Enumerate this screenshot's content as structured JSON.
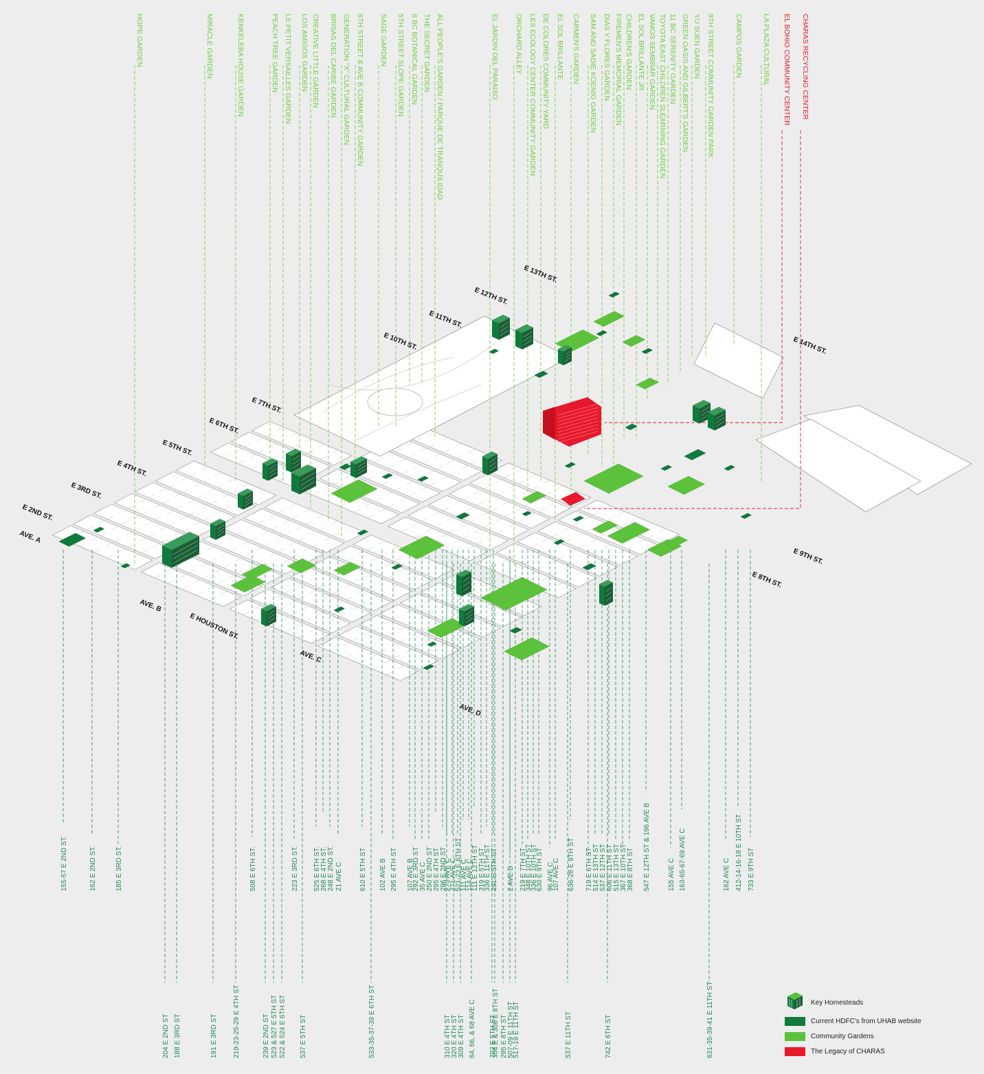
{
  "colors": {
    "background": "#ededed",
    "hdfc": "#0f7a3c",
    "garden": "#5cc23c",
    "garden_text": "#6fcf45",
    "charas": "#e8192c",
    "address_text": "#1f8a52",
    "street_text": "#111111",
    "block_outline": "#9a9a9a"
  },
  "top_labels": {
    "gardens": [
      "HOPE GARDEN",
      "MIRACLE GARDEN",
      "KENKELEBA HOUSE GARDEN",
      "PEACH TREE GARDEN",
      "LE PETIT VERSAILLES GARDEN",
      "LOS AMIGOS GARDEN",
      "CREATIVE LITTLE GARDEN",
      "BRISAS DEL CARIBE GARDEN",
      "GENERATION \"X\" CULTURAL GARDEN",
      "6TH STREET & AVE B COMMUNITY GARDEN",
      "SAGE GARDEN",
      "5TH STREET SLOPE GARDEN",
      "6 BC BOTANICAL GARDEN",
      "THE SECRET GARDEN",
      "ALL PEOPLE'S GARDEN / PARQUE DE TRANQUILIDAD",
      "EL JARDIN DEL PARAISO",
      "ORCHARD ALLEY",
      "LES ECOLOGY CENTER COMMUNITY GARDEN",
      "DE COLORES COMMUNITY YARD",
      "EL SOL BRILLANTE",
      "CARMEN'S GARDEN",
      "SAM AND SADIE KOENIG GARDEN",
      "DIAS Y FLORES GARDEN",
      "FIREMEN'S MEMORIAL GARDEN",
      "CHILDREN'S GARDEN",
      "EL SOL BRILLANTE JR",
      "VAMOS SEMBRAR GARDEN",
      "TOYOTA EAST CHILDREN SLEARNING GARDEN",
      "11 BC SERENITY GARDEN",
      "GREEN OASIS AND GILBERT'S GARDEN",
      "YU SUEN GARDEN",
      "9TH STREET COMMUNITY GARDEN PARK",
      "CAMPOS GARDEN",
      "LA PLAZA CULTURAL"
    ],
    "charas": [
      "EL BOHIO COMMUNITY CENTER",
      "CHARAS RECYCLING CENTER"
    ]
  },
  "streets": [
    "AVE. A",
    "E 2ND ST.",
    "E 3RD ST.",
    "E 4TH ST.",
    "E 5TH ST.",
    "E 6TH ST.",
    "E 7TH ST.",
    "E 10TH ST.",
    "E 11TH ST.",
    "E 12TH ST.",
    "E 13TH ST.",
    "E 14TH ST.",
    "E 9TH ST.",
    "E 8TH ST.",
    "AVE. B",
    "E HOUSTON ST.",
    "AVE. C",
    "AVE. D"
  ],
  "addresses_mid": [
    "155-57 E 2ND ST.",
    "162 E 2ND ST.",
    "185 E 3RD ST.",
    "508 E 6TH ST.",
    "223 E 3RD ST.",
    "525 E 6TH ST.",
    "268 E 4TH ST.",
    "248 E 2ND ST.",
    "21 AVE C",
    "610 E 5TH ST",
    "102 AVE B",
    "295 E 4TH ST",
    "107 AVE B",
    "292 E 3RD ST",
    "35 AVE C",
    "250 E 2ND ST",
    "295 E 4TH ST",
    "296 E 2ND ST",
    "273 AVE C",
    "271 AVE C",
    "521-23 E 6TH ST",
    "111 AVE C",
    "114 AVE C",
    "111 E 12TH ST",
    "319 E 5TH ST",
    "336 E 11TH ST",
    "291 E 5TH ST",
    "2 AVE D",
    "219 E 7TH ST",
    "348 E 10TH ST",
    "336 E 10TH ST",
    "630 E 9TH ST",
    "96 AVE C",
    "107 AVE C",
    "636-28 E 9TH ST",
    "719 E 6TH ST",
    "514 E 13TH ST",
    "537 E 12TH ST",
    "606 E 11TH ST",
    "515 E 13TH ST",
    "367 E 10TH ST",
    "368 E 8TH ST",
    "547 E 12TH ST & 196 AVE B",
    "155 AVE C",
    "163-65-67-69 AVE C",
    "162 AVE C",
    "412-14-16-18 E 10TH ST",
    "733 E 9TH ST"
  ],
  "addresses_bottom": [
    "204 E 2ND ST",
    "188 E 3RD ST",
    "191 E 3RD ST",
    "219-23-25-29 E 4TH ST",
    "239 E 2ND ST",
    "523 & 527 E 5TH ST",
    "522 & 524 E 6TH ST",
    "537 E 5TH ST",
    "533-35-37-39 E 6TH ST",
    "310 E 4TH ST",
    "320 E 4TH ST",
    "309 E 4TH ST",
    "64, 66, & 68 AVE C",
    "702 E 5TH ST",
    "304 E & 306 E 8TH ST",
    "295 E 8TH ST",
    "507-09 E 11TH ST",
    "517-19 E 11TH ST",
    "537 E 11TH ST",
    "742 E 6TH ST",
    "631-35-39-41 E 11TH ST"
  ],
  "legend": {
    "items": [
      {
        "label": "Key Homesteads",
        "type": "homestead"
      },
      {
        "label": "Current HDFC's from UHAB website",
        "type": "hdfc"
      },
      {
        "label": "Community Gardens",
        "type": "garden"
      },
      {
        "label": "The Legacy of CHARAS",
        "type": "charas"
      }
    ]
  }
}
